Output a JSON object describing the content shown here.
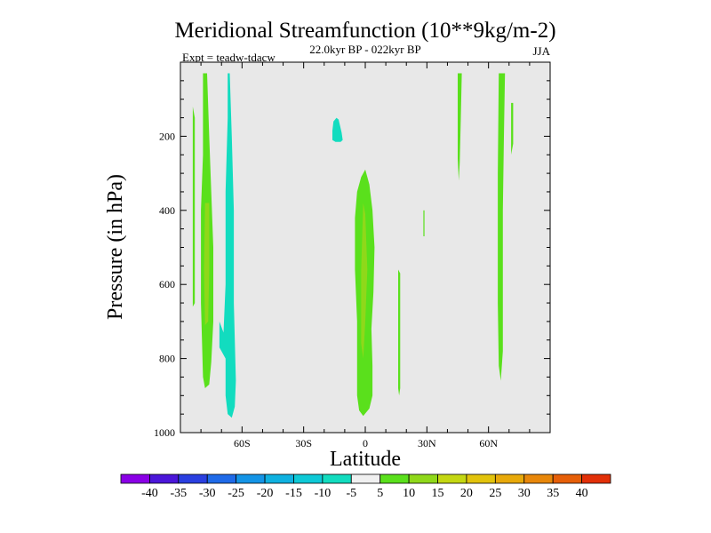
{
  "chart_data": {
    "type": "heatmap",
    "title": "Meridional Streamfunction (10**9kg/m-2)",
    "subtitle": "22.0kyr BP - 022kyr BP",
    "left_annotation": "Expt = teadw-tdacw",
    "right_annotation": "JJA",
    "xlabel": "Latitude",
    "ylabel": "Pressure (in hPa)",
    "xlim": [
      -90,
      90
    ],
    "ylim": [
      1000,
      0
    ],
    "xticks": [
      -60,
      -30,
      0,
      30,
      60
    ],
    "xtick_labels": [
      "60S",
      "30S",
      "0",
      "30N",
      "60N"
    ],
    "yticks": [
      200,
      400,
      600,
      800,
      1000
    ],
    "ytick_labels": [
      "200",
      "400",
      "600",
      "800",
      "1000"
    ],
    "background_color": "#e8e8e8",
    "colorbar": {
      "levels": [
        -40,
        -35,
        -30,
        -25,
        -20,
        -15,
        -10,
        -5,
        5,
        10,
        15,
        20,
        25,
        30,
        35,
        40
      ],
      "tick_labels": [
        "-40",
        "-35",
        "-30",
        "-25",
        "-20",
        "-15",
        "-10",
        "-5",
        "5",
        "10",
        "15",
        "20",
        "25",
        "30",
        "35",
        "40"
      ],
      "colors": [
        "#8a00e6",
        "#4b16d9",
        "#2a3fe0",
        "#1f6ae8",
        "#1494e6",
        "#0fb1e0",
        "#0ec9d6",
        "#12dcbf",
        "#f0f0f0",
        "#5ae01c",
        "#8fd81a",
        "#c4d712",
        "#e2c30c",
        "#e8a90a",
        "#e8870a",
        "#e65f08",
        "#e23008"
      ]
    },
    "regions": [
      {
        "name": "green-band-75S",
        "value": 7.5,
        "color": "#5ae01c",
        "points": [
          [
            -79,
            30
          ],
          [
            -77,
            30
          ],
          [
            -76,
            200
          ],
          [
            -75,
            350
          ],
          [
            -74,
            500
          ],
          [
            -74,
            700
          ],
          [
            -75,
            810
          ],
          [
            -76,
            870
          ],
          [
            -78,
            880
          ],
          [
            -79,
            850
          ],
          [
            -80,
            650
          ],
          [
            -80,
            400
          ],
          [
            -79,
            250
          ]
        ]
      },
      {
        "name": "yellow-core-75S",
        "value": 12.5,
        "color": "#8fd81a",
        "points": [
          [
            -78,
            380
          ],
          [
            -76,
            380
          ],
          [
            -76,
            560
          ],
          [
            -76.5,
            700
          ],
          [
            -78,
            710
          ],
          [
            -78.5,
            560
          ]
        ]
      },
      {
        "name": "green-strip-85S",
        "value": 7.5,
        "color": "#5ae01c",
        "points": [
          [
            -84,
            120
          ],
          [
            -83,
            150
          ],
          [
            -83,
            650
          ],
          [
            -84,
            660
          ],
          [
            -84,
            380
          ]
        ]
      },
      {
        "name": "cyan-band-65S",
        "value": -7.5,
        "color": "#12dcbf",
        "points": [
          [
            -67,
            30
          ],
          [
            -66,
            30
          ],
          [
            -65,
            200
          ],
          [
            -64,
            400
          ],
          [
            -64,
            650
          ],
          [
            -63,
            860
          ],
          [
            -63.5,
            930
          ],
          [
            -65,
            960
          ],
          [
            -67,
            950
          ],
          [
            -68,
            900
          ],
          [
            -68,
            800
          ],
          [
            -71,
            770
          ],
          [
            -71,
            700
          ],
          [
            -69,
            730
          ],
          [
            -68,
            600
          ],
          [
            -68,
            350
          ],
          [
            -67,
            150
          ]
        ]
      },
      {
        "name": "cyan-blob-15S",
        "value": -7.5,
        "color": "#12dcbf",
        "points": [
          [
            -12,
            215
          ],
          [
            -11,
            210
          ],
          [
            -11.5,
            190
          ],
          [
            -13,
            155
          ],
          [
            -14,
            150
          ],
          [
            -15.5,
            160
          ],
          [
            -16,
            185
          ],
          [
            -16,
            210
          ],
          [
            -14.5,
            215
          ]
        ]
      },
      {
        "name": "green-band-equator",
        "value": 7.5,
        "color": "#5ae01c",
        "points": [
          [
            0,
            290
          ],
          [
            2,
            330
          ],
          [
            3.5,
            400
          ],
          [
            4.5,
            500
          ],
          [
            4,
            620
          ],
          [
            3,
            720
          ],
          [
            3.5,
            820
          ],
          [
            3.5,
            900
          ],
          [
            2,
            935
          ],
          [
            -1,
            955
          ],
          [
            -3,
            940
          ],
          [
            -4,
            900
          ],
          [
            -4,
            700
          ],
          [
            -5,
            560
          ],
          [
            -5,
            420
          ],
          [
            -4,
            350
          ],
          [
            -2,
            310
          ]
        ]
      },
      {
        "name": "yellow-core-equator",
        "value": 12.5,
        "color": "#8fd81a",
        "points": [
          [
            -1,
            380
          ],
          [
            0,
            410
          ],
          [
            1,
            560
          ],
          [
            0,
            700
          ],
          [
            -1,
            800
          ],
          [
            -2,
            760
          ],
          [
            -2,
            560
          ]
        ]
      },
      {
        "name": "green-strip-15N",
        "value": 7.5,
        "color": "#5ae01c",
        "points": [
          [
            16,
            560
          ],
          [
            17,
            570
          ],
          [
            17,
            880
          ],
          [
            16.5,
            900
          ],
          [
            16,
            880
          ]
        ]
      },
      {
        "name": "green-tick-30N",
        "value": 7.5,
        "color": "#5ae01c",
        "points": [
          [
            28.3,
            400
          ],
          [
            28.8,
            400
          ],
          [
            28.8,
            470
          ],
          [
            28.3,
            470
          ]
        ]
      },
      {
        "name": "green-strip-45N",
        "value": 7.5,
        "color": "#5ae01c",
        "points": [
          [
            45,
            30
          ],
          [
            47,
            30
          ],
          [
            46.5,
            150
          ],
          [
            46,
            270
          ],
          [
            45.5,
            320
          ],
          [
            45,
            260
          ],
          [
            45,
            120
          ]
        ]
      },
      {
        "name": "green-band-65N",
        "value": 7.5,
        "color": "#5ae01c",
        "points": [
          [
            65,
            30
          ],
          [
            68,
            30
          ],
          [
            67.5,
            200
          ],
          [
            67,
            400
          ],
          [
            67,
            650
          ],
          [
            67,
            780
          ],
          [
            66,
            860
          ],
          [
            65,
            820
          ],
          [
            64.5,
            650
          ],
          [
            64.5,
            300
          ]
        ]
      },
      {
        "name": "green-strip-70N",
        "value": 7.5,
        "color": "#5ae01c",
        "points": [
          [
            71,
            110
          ],
          [
            72,
            110
          ],
          [
            72,
            220
          ],
          [
            71,
            250
          ]
        ]
      }
    ]
  }
}
